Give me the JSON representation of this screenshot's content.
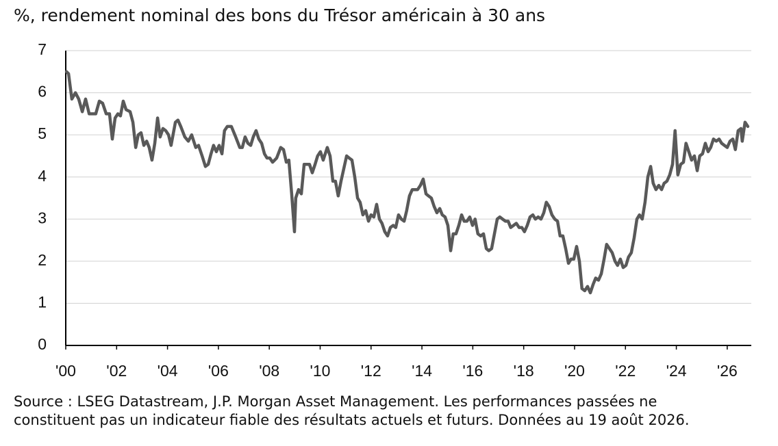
{
  "chart_data": {
    "type": "line",
    "title": "%, rendement nominal des bons du Trésor américain à 30 ans",
    "note": [
      "Source : LSEG Datastream, J.P. Morgan Asset Management. Les performances passées ne",
      "constituent pas un indicateur fiable des résultats actuels et futurs. Données au 19 août 2026."
    ],
    "color": "#595959",
    "grid": true,
    "xlim": [
      2000,
      2027
    ],
    "ylim": [
      0,
      7
    ],
    "yticks": [
      0,
      1,
      2,
      3,
      4,
      5,
      6,
      7
    ],
    "xticks": [
      {
        "value": 2000,
        "label": "'00"
      },
      {
        "value": 2002,
        "label": "'02"
      },
      {
        "value": 2004,
        "label": "'04"
      },
      {
        "value": 2006,
        "label": "'06"
      },
      {
        "value": 2008,
        "label": "'08"
      },
      {
        "value": 2010,
        "label": "'10"
      },
      {
        "value": 2012,
        "label": "'12"
      },
      {
        "value": 2014,
        "label": "'14"
      },
      {
        "value": 2016,
        "label": "'16"
      },
      {
        "value": 2018,
        "label": "'18"
      },
      {
        "value": 2020,
        "label": "'20"
      },
      {
        "value": 2022,
        "label": "'22"
      },
      {
        "value": 2024,
        "label": "'24"
      },
      {
        "value": 2026,
        "label": "'26"
      }
    ],
    "x": [
      2000.03,
      2000.11,
      2000.24,
      2000.38,
      2000.51,
      2000.65,
      2000.78,
      2000.92,
      2001.05,
      2001.18,
      2001.32,
      2001.45,
      2001.59,
      2001.72,
      2001.83,
      2001.94,
      2002.05,
      2002.15,
      2002.26,
      2002.37,
      2002.53,
      2002.64,
      2002.75,
      2002.85,
      2002.96,
      2003.07,
      2003.18,
      2003.28,
      2003.39,
      2003.5,
      2003.61,
      2003.71,
      2003.82,
      2003.93,
      2004.04,
      2004.14,
      2004.31,
      2004.41,
      2004.52,
      2004.68,
      2004.82,
      2004.95,
      2005.11,
      2005.22,
      2005.36,
      2005.49,
      2005.6,
      2005.71,
      2005.81,
      2005.92,
      2006.03,
      2006.14,
      2006.24,
      2006.35,
      2006.51,
      2006.68,
      2006.84,
      2006.94,
      2007.05,
      2007.16,
      2007.27,
      2007.37,
      2007.48,
      2007.59,
      2007.7,
      2007.81,
      2007.91,
      2008.02,
      2008.13,
      2008.29,
      2008.45,
      2008.56,
      2008.67,
      2008.77,
      2008.88,
      2008.99,
      2009.04,
      2009.15,
      2009.26,
      2009.37,
      2009.47,
      2009.58,
      2009.69,
      2009.8,
      2009.9,
      2010.01,
      2010.12,
      2010.28,
      2010.39,
      2010.5,
      2010.6,
      2010.71,
      2010.82,
      2010.93,
      2011.04,
      2011.14,
      2011.25,
      2011.36,
      2011.47,
      2011.57,
      2011.68,
      2011.79,
      2011.9,
      2012.0,
      2012.11,
      2012.22,
      2012.33,
      2012.43,
      2012.54,
      2012.65,
      2012.76,
      2012.87,
      2012.97,
      2013.08,
      2013.19,
      2013.3,
      2013.4,
      2013.51,
      2013.62,
      2013.73,
      2013.83,
      2013.94,
      2014.05,
      2014.16,
      2014.26,
      2014.37,
      2014.48,
      2014.59,
      2014.7,
      2014.8,
      2014.91,
      2015.02,
      2015.13,
      2015.23,
      2015.34,
      2015.45,
      2015.56,
      2015.66,
      2015.77,
      2015.88,
      2015.99,
      2016.09,
      2016.2,
      2016.31,
      2016.42,
      2016.53,
      2016.63,
      2016.74,
      2016.85,
      2016.96,
      2017.06,
      2017.17,
      2017.28,
      2017.39,
      2017.49,
      2017.6,
      2017.71,
      2017.82,
      2017.93,
      2018.03,
      2018.14,
      2018.25,
      2018.36,
      2018.46,
      2018.57,
      2018.68,
      2018.79,
      2018.89,
      2019.0,
      2019.11,
      2019.22,
      2019.33,
      2019.43,
      2019.54,
      2019.65,
      2019.76,
      2019.86,
      2019.97,
      2020.08,
      2020.19,
      2020.29,
      2020.4,
      2020.51,
      2020.62,
      2020.73,
      2020.83,
      2020.94,
      2021.05,
      2021.16,
      2021.26,
      2021.37,
      2021.48,
      2021.59,
      2021.69,
      2021.8,
      2021.91,
      2022.02,
      2022.12,
      2022.23,
      2022.34,
      2022.45,
      2022.55,
      2022.66,
      2022.77,
      2022.88,
      2022.99,
      2023.09,
      2023.2,
      2023.31,
      2023.42,
      2023.52,
      2023.63,
      2023.74,
      2023.85,
      2023.95,
      2024.06,
      2024.17,
      2024.28,
      2024.38,
      2024.49,
      2024.6,
      2024.71,
      2024.82,
      2024.92,
      2025.03,
      2025.14,
      2025.25,
      2025.35,
      2025.46,
      2025.57,
      2025.68,
      2025.78,
      2025.89,
      2026.0,
      2026.11,
      2026.22,
      2026.32,
      2026.43,
      2026.54,
      2026.59,
      2026.7,
      2026.81
    ],
    "values": [
      6.5,
      6.45,
      5.85,
      6.0,
      5.85,
      5.55,
      5.85,
      5.5,
      5.5,
      5.5,
      5.8,
      5.75,
      5.5,
      5.5,
      4.9,
      5.4,
      5.5,
      5.45,
      5.8,
      5.6,
      5.55,
      5.3,
      4.7,
      5.0,
      5.05,
      4.75,
      4.85,
      4.7,
      4.4,
      4.8,
      5.4,
      4.95,
      5.15,
      5.1,
      5.0,
      4.75,
      5.3,
      5.35,
      5.2,
      4.95,
      4.85,
      5.0,
      4.7,
      4.75,
      4.5,
      4.25,
      4.3,
      4.55,
      4.75,
      4.6,
      4.75,
      4.55,
      5.1,
      5.2,
      5.2,
      4.95,
      4.7,
      4.7,
      4.95,
      4.8,
      4.75,
      4.95,
      5.1,
      4.9,
      4.8,
      4.55,
      4.45,
      4.45,
      4.35,
      4.45,
      4.7,
      4.65,
      4.35,
      4.4,
      3.6,
      2.7,
      3.5,
      3.7,
      3.6,
      4.3,
      4.3,
      4.3,
      4.1,
      4.3,
      4.5,
      4.6,
      4.4,
      4.7,
      4.5,
      3.9,
      3.9,
      3.55,
      3.9,
      4.2,
      4.5,
      4.45,
      4.4,
      4.0,
      3.5,
      3.4,
      3.1,
      3.2,
      2.95,
      3.1,
      3.05,
      3.35,
      3.0,
      2.9,
      2.7,
      2.6,
      2.8,
      2.85,
      2.8,
      3.1,
      3.0,
      2.95,
      3.2,
      3.55,
      3.7,
      3.7,
      3.7,
      3.8,
      3.95,
      3.6,
      3.55,
      3.5,
      3.3,
      3.15,
      3.25,
      3.1,
      3.05,
      2.85,
      2.25,
      2.65,
      2.65,
      2.85,
      3.1,
      2.95,
      2.95,
      3.05,
      2.85,
      3.0,
      2.65,
      2.6,
      2.65,
      2.3,
      2.25,
      2.3,
      2.65,
      3.0,
      3.05,
      3.0,
      2.95,
      2.95,
      2.8,
      2.85,
      2.9,
      2.8,
      2.8,
      2.7,
      2.85,
      3.05,
      3.1,
      3.0,
      3.05,
      3.0,
      3.15,
      3.4,
      3.3,
      3.1,
      3.0,
      2.95,
      2.6,
      2.6,
      2.3,
      1.95,
      2.05,
      2.05,
      2.35,
      2.0,
      1.35,
      1.3,
      1.4,
      1.25,
      1.45,
      1.6,
      1.55,
      1.7,
      2.05,
      2.4,
      2.3,
      2.2,
      2.0,
      1.9,
      2.05,
      1.85,
      1.9,
      2.1,
      2.2,
      2.55,
      3.0,
      3.1,
      3.0,
      3.4,
      4.0,
      4.25,
      3.85,
      3.7,
      3.8,
      3.7,
      3.85,
      3.9,
      4.05,
      4.3,
      5.1,
      4.05,
      4.3,
      4.35,
      4.8,
      4.6,
      4.4,
      4.5,
      4.15,
      4.5,
      4.55,
      4.8,
      4.6,
      4.7,
      4.9,
      4.85,
      4.9,
      4.8,
      4.75,
      4.7,
      4.85,
      4.9,
      4.65,
      5.1,
      5.15,
      4.85,
      5.3,
      5.2
    ]
  }
}
